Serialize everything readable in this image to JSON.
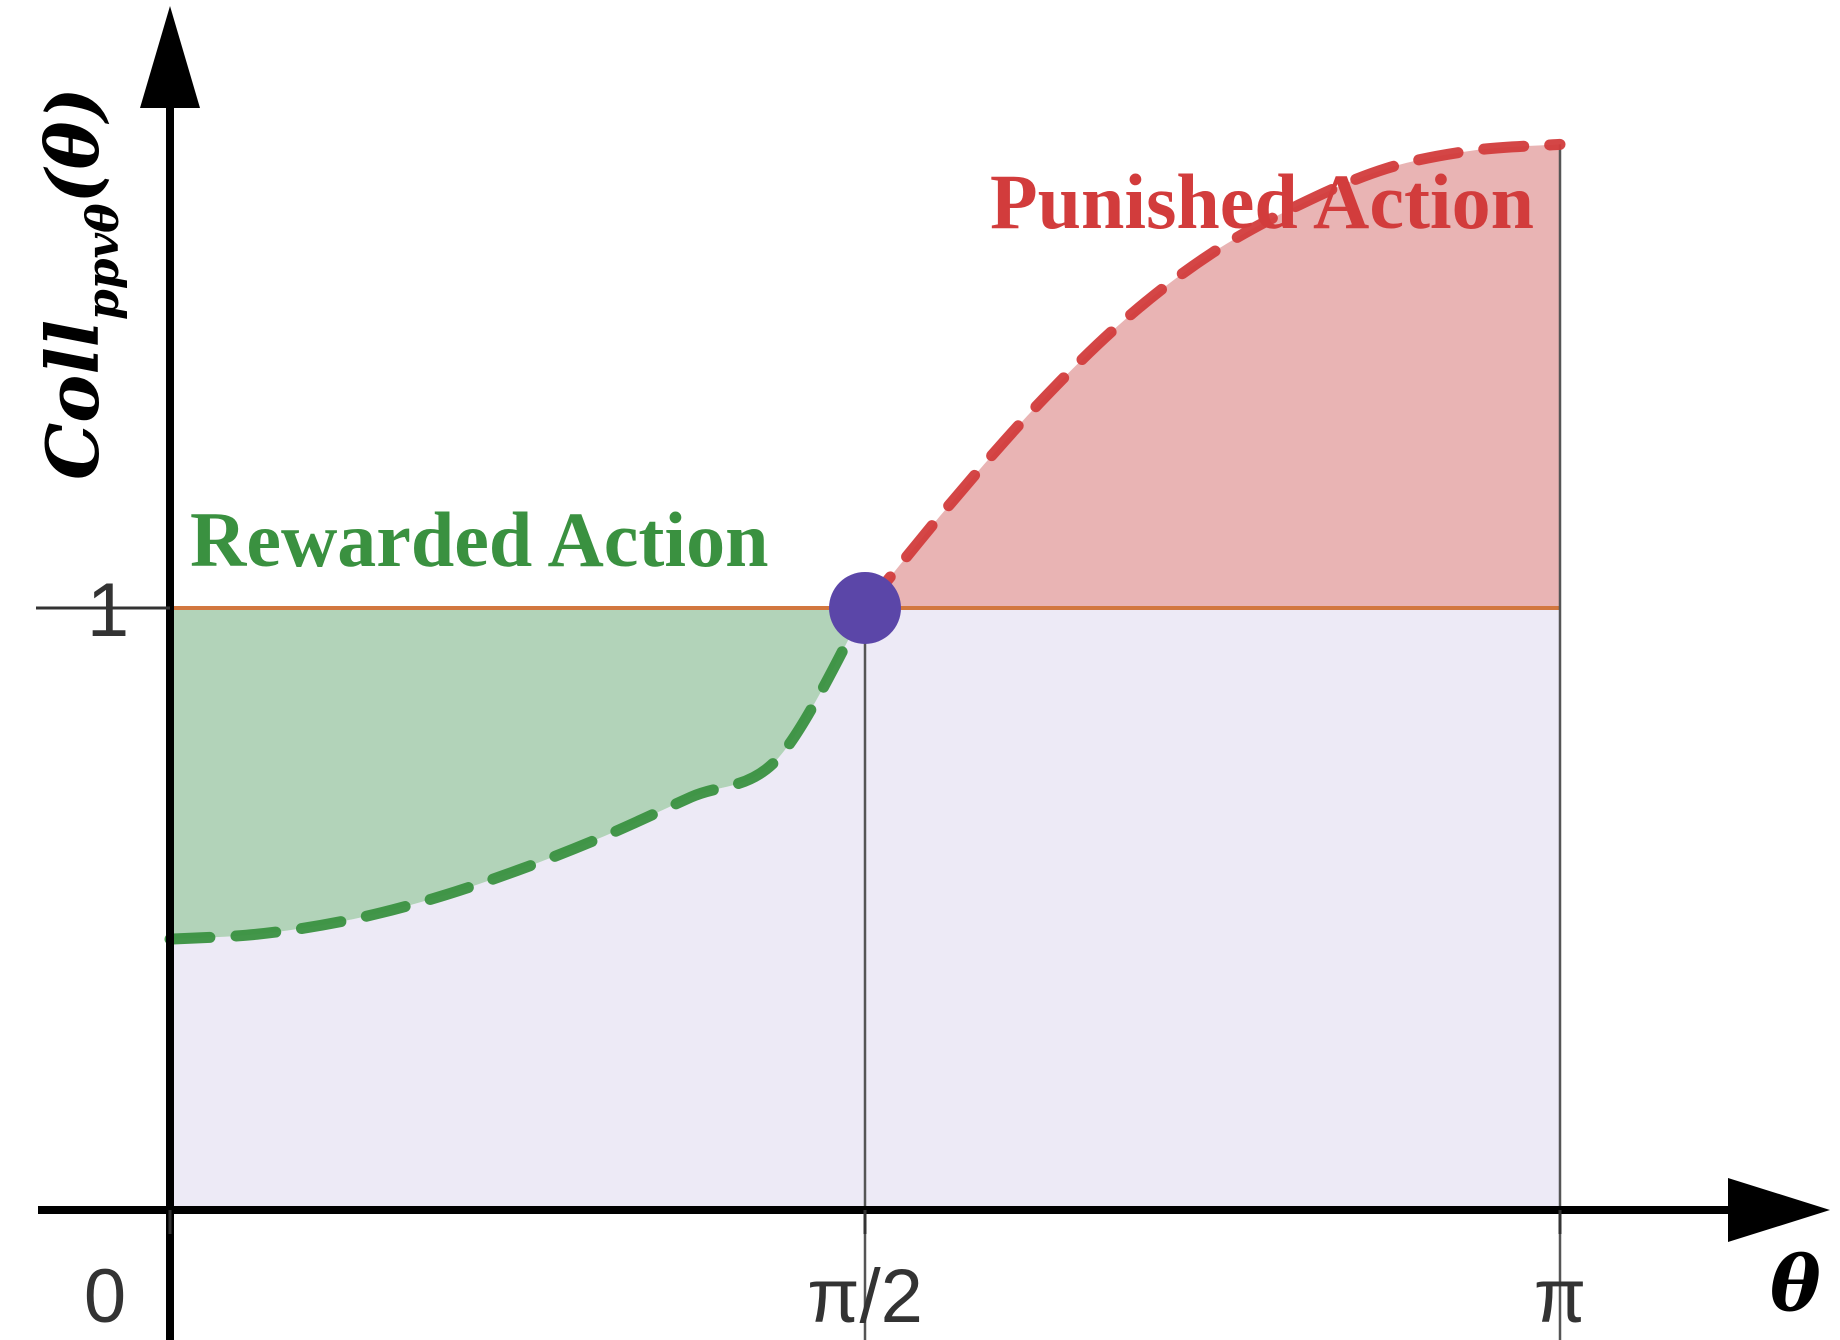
{
  "chart_data": {
    "type": "area",
    "ylabel": "Coll",
    "ylabel_subscript": "ppvθ",
    "ylabel_arg": "(θ)",
    "xlabel": "θ",
    "x_ticks": [
      {
        "value": 0,
        "label": "0"
      },
      {
        "value": 1.5708,
        "label": "π/2"
      },
      {
        "value": 3.1416,
        "label": "π"
      }
    ],
    "y_ticks": [
      {
        "value": 1,
        "label": "1"
      }
    ],
    "xlim": [
      0,
      3.1416
    ],
    "ylim": [
      0,
      1.98
    ],
    "baseline": {
      "y": 1,
      "color": "#d2773f"
    },
    "series": [
      {
        "label": "Rewarded Action",
        "color": "#3a9140",
        "fill": "#b2d3b9",
        "style": "dashed",
        "x": [
          0,
          0.196,
          0.393,
          0.589,
          0.785,
          0.982,
          1.178,
          1.374,
          1.571
        ],
        "y": [
          0.45,
          0.458,
          0.48,
          0.516,
          0.564,
          0.621,
          0.686,
          0.75,
          1.0
        ]
      },
      {
        "label": "Punished Action",
        "color": "#d23c3c",
        "fill": "#e9b4b4",
        "style": "dashed",
        "x": [
          1.571,
          1.767,
          1.963,
          2.16,
          2.356,
          2.553,
          2.749,
          2.945,
          3.1416
        ],
        "y": [
          1.0,
          1.176,
          1.339,
          1.48,
          1.59,
          1.67,
          1.73,
          1.76,
          1.77
        ]
      }
    ],
    "background_fill": "#edeaf6",
    "marker": {
      "x": 1.5708,
      "y": 1,
      "color": "#5b46a8"
    },
    "grid": false
  }
}
